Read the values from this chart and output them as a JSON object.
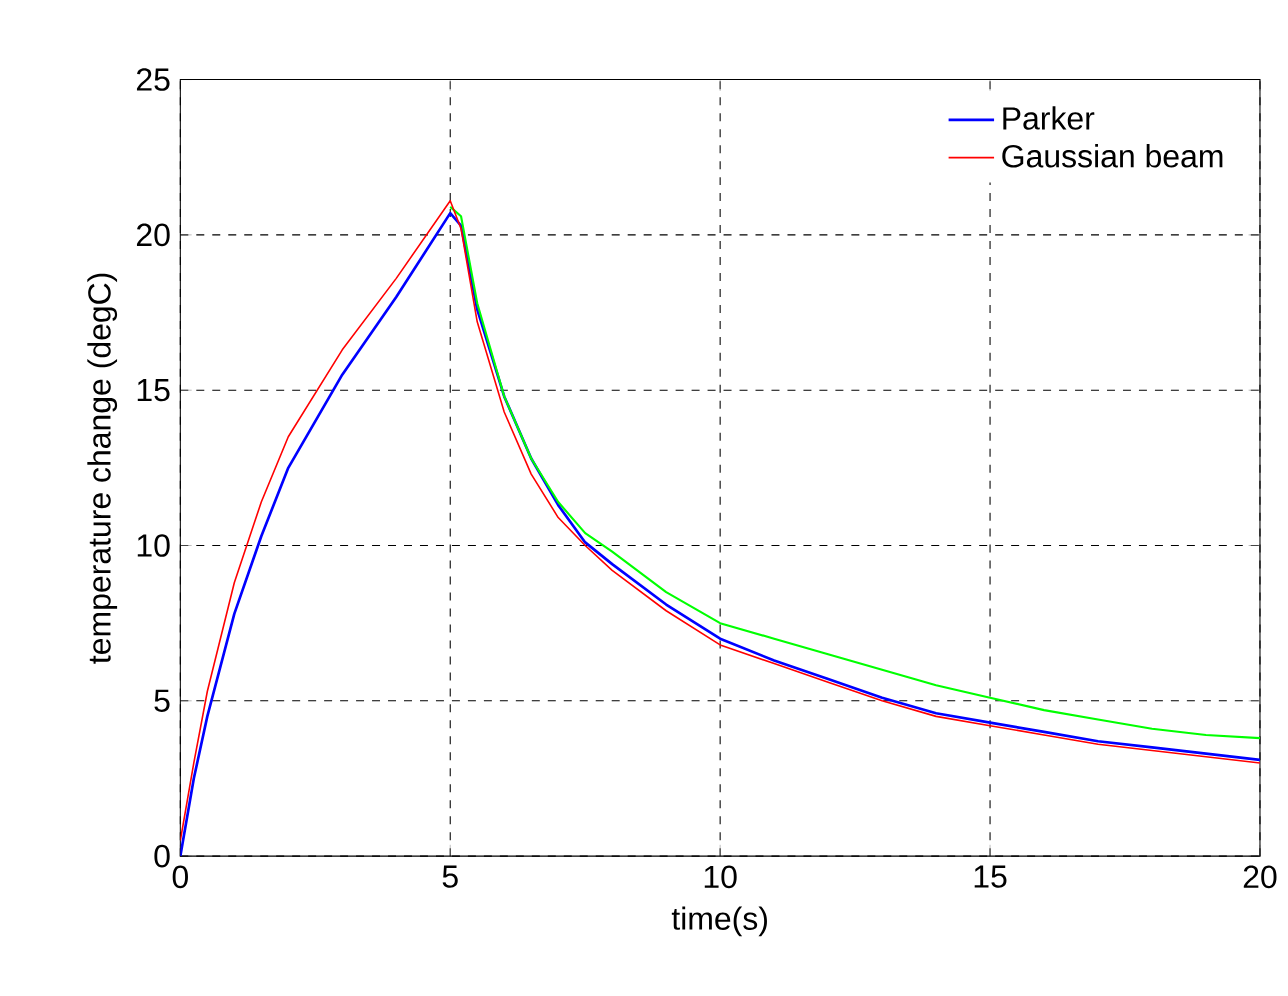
{
  "chart_data": {
    "type": "line",
    "xlabel": "time(s)",
    "ylabel": "temperature change (degC)",
    "xlim": [
      0,
      20
    ],
    "ylim": [
      0,
      25
    ],
    "xticks": [
      0,
      5,
      10,
      15,
      20
    ],
    "yticks": [
      0,
      5,
      10,
      15,
      20,
      25
    ],
    "grid": true,
    "legend": "top right",
    "line_style": "solid",
    "series": [
      {
        "name": "Parker",
        "color": "#0000ff",
        "x": [
          0,
          0.25,
          0.5,
          1,
          1.5,
          2,
          3,
          4,
          5,
          5.2,
          5.5,
          6,
          6.5,
          7,
          7.5,
          8,
          9,
          10,
          11,
          12,
          13,
          14,
          15,
          16,
          17,
          18,
          19,
          20
        ],
        "values": [
          0,
          2.5,
          4.5,
          7.8,
          10.3,
          12.5,
          15.5,
          18,
          20.7,
          20.3,
          17.6,
          14.8,
          12.8,
          11.3,
          10.1,
          9.4,
          8.1,
          7.0,
          6.3,
          5.7,
          5.1,
          4.6,
          4.3,
          4.0,
          3.7,
          3.5,
          3.3,
          3.1
        ]
      },
      {
        "color": "#00ff00",
        "x": [
          5,
          5.2,
          5.5,
          6,
          6.5,
          7,
          7.5,
          8,
          9,
          10,
          11,
          12,
          13,
          14,
          15,
          16,
          17,
          18,
          19,
          20
        ],
        "values": [
          20.9,
          20.6,
          17.8,
          14.8,
          12.8,
          11.4,
          10.4,
          9.8,
          8.5,
          7.5,
          7.0,
          6.5,
          6.0,
          5.5,
          5.1,
          4.7,
          4.4,
          4.1,
          3.9,
          3.8
        ]
      },
      {
        "name": "Gaussian beam",
        "color": "#ff0000",
        "x": [
          0,
          0.25,
          0.5,
          1,
          1.5,
          2,
          3,
          4,
          5,
          5.2,
          5.5,
          6,
          6.5,
          7,
          7.5,
          8,
          9,
          10,
          11,
          12,
          13,
          14,
          15,
          16,
          17,
          18,
          19,
          20
        ],
        "values": [
          0.5,
          3,
          5.3,
          8.8,
          11.4,
          13.5,
          16.3,
          18.6,
          21.1,
          20.2,
          17.2,
          14.3,
          12.3,
          10.9,
          10.0,
          9.2,
          7.9,
          6.8,
          6.2,
          5.6,
          5.0,
          4.5,
          4.2,
          3.9,
          3.6,
          3.4,
          3.2,
          3.0
        ]
      }
    ]
  }
}
